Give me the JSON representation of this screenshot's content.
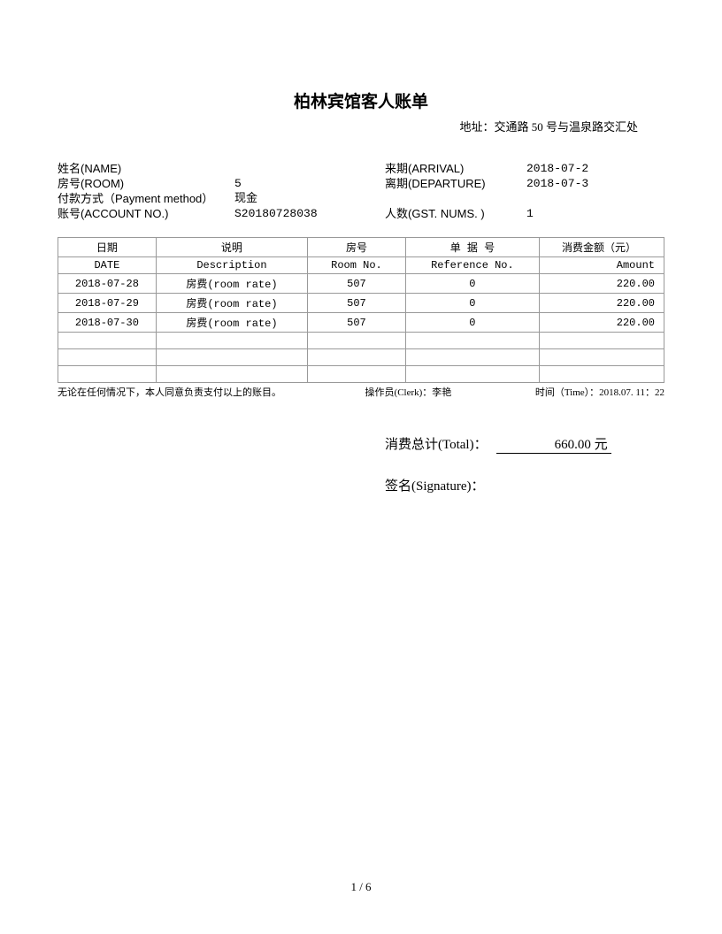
{
  "header": {
    "title": "柏林宾馆客人账单",
    "address": "地址：交通路 50 号与温泉路交汇处"
  },
  "guest": {
    "name_label": "姓名(NAME)",
    "name_value": "",
    "room_label": "房号(ROOM)",
    "room_value": "5",
    "payment_label": "付款方式（Payment method）",
    "payment_value": "现金",
    "account_label": "账号(ACCOUNT NO.)",
    "account_value": "S20180728038",
    "arrival_label": "来期(ARRIVAL)",
    "arrival_value": "2018-07-2",
    "departure_label": "离期(DEPARTURE)",
    "departure_value": "2018-07-3",
    "guests_label": "人数(GST. NUMS. )",
    "guests_value": "1"
  },
  "table": {
    "headers_cn": {
      "date": "日期",
      "desc": "说明",
      "room": "房号",
      "ref": "单 据 号",
      "amt": "消费金额（元）"
    },
    "headers_en": {
      "date": "DATE",
      "desc": "Description",
      "room": "Room No.",
      "ref": "Reference No.",
      "amt": "Amount"
    },
    "rows": [
      {
        "date": "2018-07-28",
        "desc": "房费(room rate)",
        "room": "507",
        "ref": "0",
        "amt": "220.00"
      },
      {
        "date": "2018-07-29",
        "desc": "房费(room rate)",
        "room": "507",
        "ref": "0",
        "amt": "220.00"
      },
      {
        "date": "2018-07-30",
        "desc": "房费(room rate)",
        "room": "507",
        "ref": "0",
        "amt": "220.00"
      }
    ],
    "empty_rows": 3
  },
  "footer_line": {
    "consent": "无论在任何情况下，本人同意负责支付以上的账目。",
    "clerk": "操作员(Clerk)：李艳",
    "time": "时间（Time）：2018.07. 11：22"
  },
  "totals": {
    "total_label": "消费总计(Total)：",
    "total_value": "660.00 元",
    "signature_label": "签名(Signature)："
  },
  "pagination": "1 / 6",
  "style": {
    "page_bg": "#ffffff",
    "text_color": "#000000",
    "border_color": "#999999",
    "title_fontsize": 19,
    "body_fontsize": 13,
    "table_fontsize": 12,
    "footer_fontsize": 11,
    "totals_fontsize": 15
  }
}
